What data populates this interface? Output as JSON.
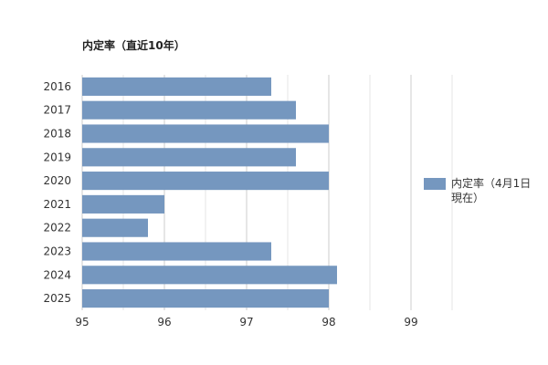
{
  "chart_data": {
    "type": "bar",
    "orientation": "horizontal",
    "title": "内定率（直近10年）",
    "categories": [
      "2016",
      "2017",
      "2018",
      "2019",
      "2020",
      "2021",
      "2022",
      "2023",
      "2024",
      "2025"
    ],
    "series": [
      {
        "name": "内定率（4月1日現在）",
        "values": [
          97.3,
          97.6,
          98.0,
          97.6,
          98.0,
          96.0,
          95.8,
          97.3,
          98.1,
          98.0
        ],
        "color": "#7597bf"
      }
    ],
    "x_ticks": [
      "95",
      "96",
      "97",
      "98",
      "99"
    ],
    "xlim": [
      95,
      99.5
    ],
    "xlabel": "",
    "ylabel": "",
    "grid": true,
    "legend_position": "right"
  }
}
